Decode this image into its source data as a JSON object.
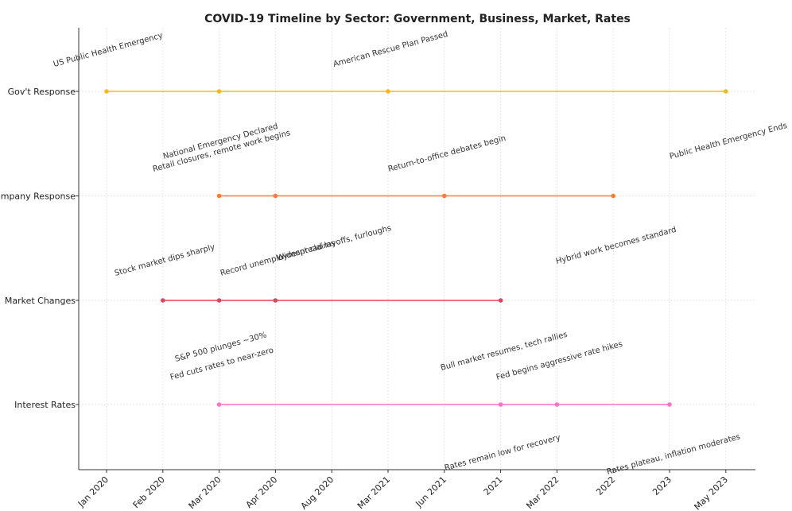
{
  "chart_data": {
    "type": "line",
    "title": "COVID-19 Timeline by Sector: Government, Business, Market, Rates",
    "xlabel": "",
    "ylabel": "",
    "grid": true,
    "categories": [
      "Jan 2020",
      "Feb 2020",
      "Mar 2020",
      "Apr 2020",
      "Aug 2020",
      "Mar 2021",
      "Jun 2021",
      "2021",
      "Mar 2022",
      "2022",
      "2023",
      "May 2023"
    ],
    "y_categories": [
      "Gov't Response",
      "Company Response",
      "Market Changes",
      "Interest Rates"
    ],
    "series": [
      {
        "name": "Gov't Response",
        "color": "#FDB913",
        "points": [
          {
            "x": "Jan 2020",
            "label": "US Public Health Emergency"
          },
          {
            "x": "Mar 2020",
            "label": "National Emergency Declared"
          },
          {
            "x": "Mar 2021",
            "label": "American Rescue Plan Passed"
          },
          {
            "x": "May 2023",
            "label": "Public Health Emergency Ends"
          }
        ]
      },
      {
        "name": "Company Response",
        "color": "#F07F3C",
        "points": [
          {
            "x": "Mar 2020",
            "label": "Retail closures, remote work begins"
          },
          {
            "x": "Apr 2020",
            "label": "Widespread layoffs, furloughs"
          },
          {
            "x": "Jun 2021",
            "label": "Return-to-office debates begin"
          },
          {
            "x": "2022",
            "label": "Hybrid work becomes standard"
          }
        ]
      },
      {
        "name": "Market Changes",
        "color": "#E8405F",
        "points": [
          {
            "x": "Feb 2020",
            "label": "Stock market dips sharply"
          },
          {
            "x": "Mar 2020",
            "label": "S&P 500 plunges ~30%"
          },
          {
            "x": "Apr 2020",
            "label": "Record unemployment claims"
          },
          {
            "x": "2021",
            "label": "Bull market resumes, tech rallies"
          }
        ]
      },
      {
        "name": "Interest Rates",
        "color": "#F774C3",
        "points": [
          {
            "x": "Mar 2020",
            "label": "Fed cuts rates to near-zero"
          },
          {
            "x": "2021",
            "label": "Rates remain low for recovery"
          },
          {
            "x": "Mar 2022",
            "label": "Fed begins aggressive rate hikes"
          },
          {
            "x": "2023",
            "label": "Rates plateau, inflation moderates"
          }
        ]
      }
    ]
  }
}
